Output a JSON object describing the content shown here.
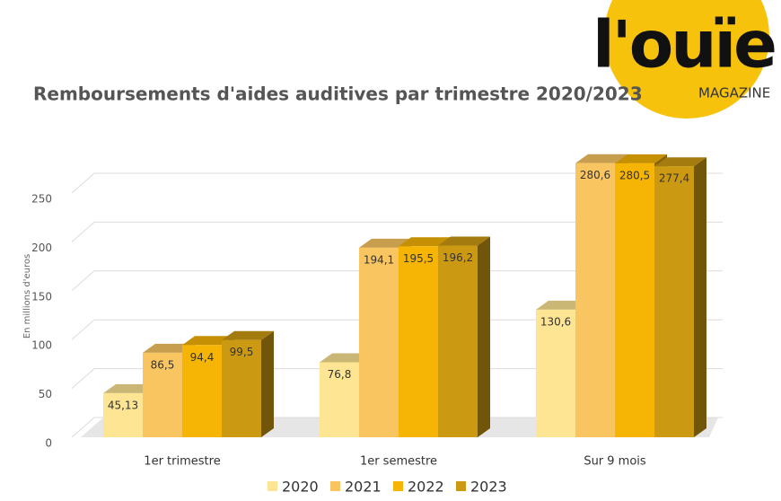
{
  "logo": {
    "name": "l'ouïe",
    "subtitle": "MAGAZINE"
  },
  "chart_data": {
    "type": "bar3d",
    "title": "Remboursements d'aides auditives par trimestre 2020/2023",
    "y_label": "En millions d'euros",
    "categories": [
      "1er trimestre",
      "1er semestre",
      "Sur 9 mois"
    ],
    "series": [
      {
        "name": "2020",
        "color": "#fde594",
        "values": [
          45.13,
          76.8,
          130.6
        ],
        "value_labels": [
          "45,13",
          "76,8",
          "130,6"
        ]
      },
      {
        "name": "2021",
        "color": "#f9c560",
        "values": [
          86.5,
          194.1,
          280.6
        ],
        "value_labels": [
          "86,5",
          "194,1",
          "280,6"
        ]
      },
      {
        "name": "2022",
        "color": "#f6b404",
        "values": [
          94.4,
          195.5,
          280.5
        ],
        "value_labels": [
          "94,4",
          "195,5",
          "280,5"
        ]
      },
      {
        "name": "2023",
        "color": "#cc9a12",
        "values": [
          99.5,
          196.2,
          277.4
        ],
        "value_labels": [
          "99,5",
          "196,2",
          "277,4"
        ]
      }
    ],
    "ylim": [
      0,
      250
    ],
    "yticks": [
      0,
      50,
      100,
      150,
      200,
      250
    ],
    "grid": true,
    "legend": "bottom"
  }
}
